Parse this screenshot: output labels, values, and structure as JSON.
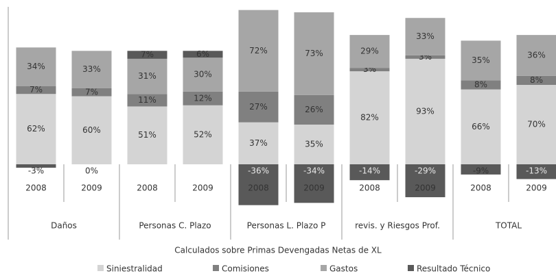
{
  "chart_data": {
    "type": "stacked_bar",
    "caption": "Calculados sobre Primas Devengadas Netas de XL",
    "groups": [
      "Daños",
      "Personas C. Plazo",
      "Personas L. Plazo P",
      "revis. y Riesgos Prof.",
      "TOTAL"
    ],
    "categories": [
      "2008",
      "2009",
      "2008",
      "2009",
      "2008",
      "2009",
      "2008",
      "2009",
      "2008",
      "2009"
    ],
    "ylim": [
      -40,
      140
    ],
    "legend": "bottom",
    "series": [
      {
        "name": "Siniestralidad",
        "color": "#d4d4d4",
        "values": [
          62,
          60,
          51,
          52,
          37,
          35,
          82,
          93,
          66,
          70
        ],
        "value_labels": [
          "62%",
          "60%",
          "51%",
          "52%",
          "37%",
          "35%",
          "82%",
          "93%",
          "66%",
          "70%"
        ]
      },
      {
        "name": "Comisiones",
        "color": "#808080",
        "values": [
          7,
          7,
          11,
          12,
          27,
          26,
          3,
          3,
          8,
          8
        ],
        "value_labels": [
          "7%",
          "7%",
          "11%",
          "12%",
          "27%",
          "26%",
          "3%",
          "3%",
          "8%",
          "8%"
        ]
      },
      {
        "name": "Gastos",
        "color": "#a6a6a6",
        "values": [
          34,
          33,
          31,
          30,
          72,
          73,
          29,
          33,
          35,
          36
        ],
        "value_labels": [
          "34%",
          "33%",
          "31%",
          "30%",
          "72%",
          "73%",
          "29%",
          "33%",
          "35%",
          "36%"
        ]
      },
      {
        "name": "Resultado Técnico",
        "color": "#595959",
        "values": [
          -3,
          0,
          7,
          6,
          -36,
          -34,
          -14,
          -29,
          -9,
          -13
        ],
        "value_labels": [
          "-3%",
          "0%",
          "7%",
          "6%",
          "-36%",
          "-34%",
          "-14%",
          "-29%",
          "-9%",
          "-13%"
        ]
      }
    ]
  }
}
